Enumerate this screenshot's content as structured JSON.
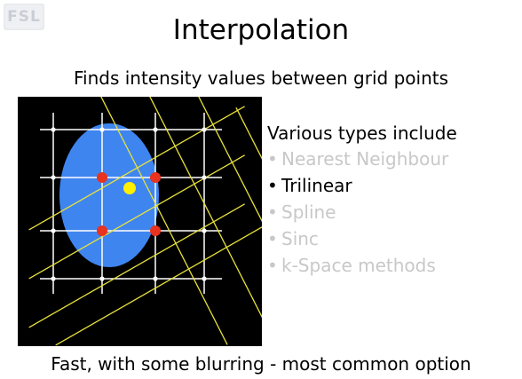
{
  "logo": {
    "text": "FSL"
  },
  "title": "Interpolation",
  "subtitle": "Finds intensity values between grid points",
  "types": {
    "heading": "Various types include",
    "items": [
      {
        "label": "Nearest Neighbour",
        "active": false
      },
      {
        "label": "Trilinear",
        "active": true
      },
      {
        "label": "Spline",
        "active": false
      },
      {
        "label": "Sinc",
        "active": false
      },
      {
        "label": "k-Space methods",
        "active": false
      }
    ]
  },
  "footer": "Fast, with some blurring - most common option",
  "colors": {
    "grid": "#ffffff",
    "rotated_grid": "#e8e23a",
    "ellipse": "#3f85f0",
    "neighbour_points": "#e8331f",
    "sample_point": "#ffef00",
    "background": "#000000",
    "dim_text": "#c8c8c8"
  }
}
